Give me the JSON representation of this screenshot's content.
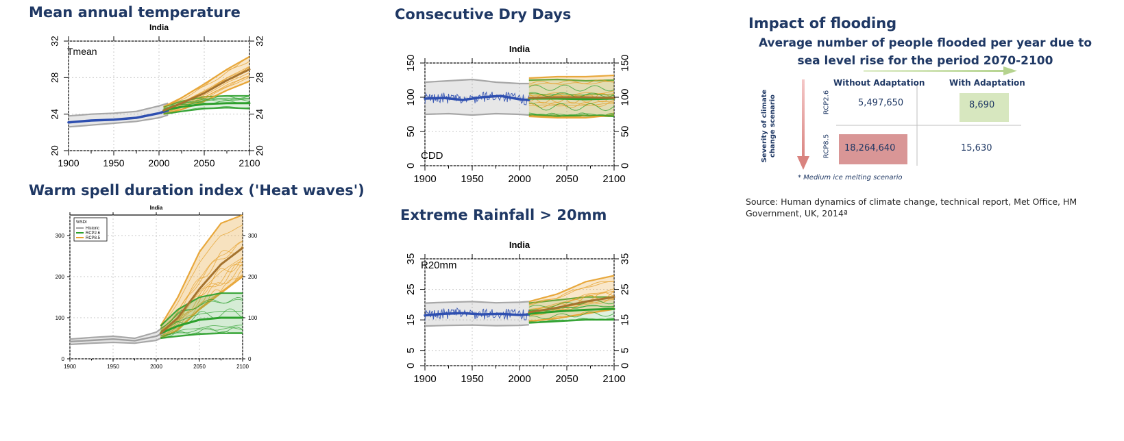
{
  "titles": {
    "tmean": "Mean annual temperature",
    "cdd": "Consecutive Dry Days",
    "wsdi": "Warm spell duration index ('Heat waves')",
    "r20": "Extreme Rainfall > 20mm",
    "flood": "Impact of flooding"
  },
  "colors": {
    "historic": "#9e9e9e",
    "historic_line": "#2e4fb0",
    "rcp26": "#2ca02c",
    "rcp85": "#e6a02a",
    "rcp85_dark": "#a5732e",
    "title": "#1f3864"
  },
  "chart_data": [
    {
      "id": "tmean",
      "type": "line",
      "title": "India",
      "annotation": "Tmean",
      "xlabel": "",
      "ylabel": "",
      "xlim": [
        1900,
        2100
      ],
      "ylim": [
        20,
        32
      ],
      "xticks": [
        1900,
        1950,
        2000,
        2050,
        2100
      ],
      "yticks": [
        20,
        24,
        28,
        32
      ],
      "grid": true,
      "legend": "none",
      "series": [
        {
          "role": "historic-band",
          "x": [
            1900,
            1925,
            1950,
            1975,
            2000,
            2010
          ],
          "upper": [
            23.8,
            24.0,
            24.1,
            24.3,
            24.9,
            25.2
          ],
          "lower": [
            22.6,
            22.8,
            23.0,
            23.2,
            23.6,
            23.9
          ]
        },
        {
          "role": "historic-mean",
          "x": [
            1900,
            1925,
            1950,
            1975,
            2000,
            2010
          ],
          "values": [
            23.1,
            23.3,
            23.4,
            23.6,
            24.1,
            24.4
          ]
        },
        {
          "role": "rcp26-band",
          "x": [
            2005,
            2025,
            2050,
            2075,
            2100
          ],
          "upper": [
            24.8,
            25.4,
            25.9,
            26.0,
            26.0
          ],
          "lower": [
            24.0,
            24.3,
            24.6,
            24.7,
            24.6
          ]
        },
        {
          "role": "rcp26-mean",
          "x": [
            2005,
            2025,
            2050,
            2075,
            2100
          ],
          "values": [
            24.4,
            24.8,
            25.1,
            25.2,
            25.2
          ]
        },
        {
          "role": "rcp85-band",
          "x": [
            2005,
            2025,
            2050,
            2075,
            2100
          ],
          "upper": [
            24.8,
            25.8,
            27.3,
            28.9,
            30.3
          ],
          "lower": [
            24.0,
            24.5,
            25.4,
            26.6,
            27.6
          ]
        },
        {
          "role": "rcp85-mean",
          "x": [
            2005,
            2025,
            2050,
            2075,
            2100
          ],
          "values": [
            24.4,
            25.2,
            26.3,
            27.7,
            28.9
          ]
        }
      ]
    },
    {
      "id": "cdd",
      "type": "line",
      "title": "India",
      "annotation": "CDD",
      "xlabel": "",
      "ylabel": "",
      "xlim": [
        1900,
        2100
      ],
      "ylim": [
        0,
        150
      ],
      "xticks": [
        1900,
        1950,
        2000,
        2050,
        2100
      ],
      "yticks": [
        0,
        50,
        100,
        150
      ],
      "grid": true,
      "legend": "none",
      "series": [
        {
          "role": "historic-band",
          "x": [
            1900,
            1925,
            1950,
            1975,
            2000,
            2010
          ],
          "upper": [
            122,
            124,
            126,
            122,
            120,
            120
          ],
          "lower": [
            75,
            76,
            74,
            76,
            75,
            74
          ]
        },
        {
          "role": "historic-mean",
          "x": [
            1900,
            1920,
            1940,
            1960,
            1980,
            2000,
            2010
          ],
          "values": [
            98,
            99,
            96,
            100,
            102,
            97,
            96
          ]
        },
        {
          "role": "rcp26-band",
          "x": [
            2010,
            2040,
            2070,
            2100
          ],
          "upper": [
            125,
            126,
            124,
            125
          ],
          "lower": [
            74,
            72,
            73,
            72
          ]
        },
        {
          "role": "rcp85-band",
          "x": [
            2010,
            2040,
            2070,
            2100
          ],
          "upper": [
            128,
            130,
            130,
            132
          ],
          "lower": [
            72,
            70,
            70,
            74
          ]
        },
        {
          "role": "rcp85-mean",
          "x": [
            2010,
            2040,
            2070,
            2100
          ],
          "values": [
            99,
            100,
            100,
            99
          ]
        },
        {
          "role": "rcp26-mean",
          "x": [
            2010,
            2040,
            2070,
            2100
          ],
          "values": [
            98,
            98,
            97,
            98
          ]
        }
      ]
    },
    {
      "id": "wsdi",
      "type": "line",
      "title": "India",
      "xlabel": "",
      "ylabel": "",
      "xlim": [
        1900,
        2100
      ],
      "ylim": [
        0,
        350
      ],
      "xticks": [
        1900,
        1950,
        2000,
        2050,
        2100
      ],
      "yticks": [
        0,
        100,
        200,
        300
      ],
      "grid": true,
      "legend": "top-left",
      "legend_title": "WSDI",
      "legend_entries": [
        "Historic",
        "RCP2.6",
        "RCP8.5"
      ],
      "series": [
        {
          "role": "historic-band",
          "x": [
            1900,
            1925,
            1950,
            1975,
            2000,
            2010
          ],
          "upper": [
            48,
            52,
            55,
            50,
            65,
            80
          ],
          "lower": [
            35,
            38,
            40,
            38,
            45,
            55
          ]
        },
        {
          "role": "historic-mean",
          "x": [
            1900,
            1925,
            1950,
            1975,
            2000,
            2010
          ],
          "values": [
            42,
            45,
            48,
            44,
            55,
            65
          ]
        },
        {
          "role": "rcp85-band",
          "x": [
            2005,
            2025,
            2050,
            2075,
            2100
          ],
          "upper": [
            80,
            150,
            260,
            330,
            350
          ],
          "lower": [
            50,
            70,
            120,
            160,
            200
          ]
        },
        {
          "role": "rcp26-band",
          "x": [
            2005,
            2025,
            2050,
            2075,
            2100
          ],
          "upper": [
            80,
            120,
            150,
            160,
            160
          ],
          "lower": [
            50,
            55,
            60,
            62,
            62
          ]
        },
        {
          "role": "rcp85-mean",
          "x": [
            2005,
            2025,
            2050,
            2075,
            2100
          ],
          "values": [
            62,
            100,
            170,
            230,
            270
          ]
        },
        {
          "role": "rcp26-mean",
          "x": [
            2005,
            2025,
            2050,
            2075,
            2100
          ],
          "values": [
            62,
            80,
            95,
            100,
            100
          ]
        }
      ]
    },
    {
      "id": "r20",
      "type": "line",
      "title": "India",
      "annotation": "R20mm",
      "xlabel": "",
      "ylabel": "",
      "xlim": [
        1900,
        2100
      ],
      "ylim": [
        0,
        35
      ],
      "xticks": [
        1900,
        1950,
        2000,
        2050,
        2100
      ],
      "yticks": [
        0,
        5,
        15,
        25,
        35
      ],
      "grid": true,
      "legend": "none",
      "series": [
        {
          "role": "historic-band",
          "x": [
            1900,
            1925,
            1950,
            1975,
            2000,
            2010
          ],
          "upper": [
            20.5,
            20.8,
            21.0,
            20.6,
            20.8,
            21.0
          ],
          "lower": [
            13.0,
            13.2,
            13.3,
            13.1,
            13.2,
            13.4
          ]
        },
        {
          "role": "historic-mean",
          "x": [
            1900,
            1920,
            1940,
            1960,
            1980,
            2000,
            2010
          ],
          "values": [
            16.5,
            17.0,
            17.2,
            16.8,
            17.0,
            16.6,
            16.8
          ]
        },
        {
          "role": "rcp26-band",
          "x": [
            2010,
            2040,
            2070,
            2100
          ],
          "upper": [
            20.5,
            21.5,
            22.5,
            22.5
          ],
          "lower": [
            14.0,
            14.5,
            15.0,
            15.0
          ]
        },
        {
          "role": "rcp85-band",
          "x": [
            2010,
            2040,
            2070,
            2100
          ],
          "upper": [
            21.0,
            23.5,
            27.5,
            29.5
          ],
          "lower": [
            14.5,
            15.5,
            17.0,
            18.5
          ]
        },
        {
          "role": "rcp85-mean",
          "x": [
            2010,
            2040,
            2070,
            2100
          ],
          "values": [
            17.5,
            19.0,
            21.0,
            22.5
          ]
        },
        {
          "role": "rcp26-mean",
          "x": [
            2010,
            2040,
            2070,
            2100
          ],
          "values": [
            17.0,
            17.8,
            18.3,
            18.6
          ]
        }
      ]
    },
    {
      "id": "flooding",
      "type": "table",
      "title": "Average number of people flooded per year due to sea level rise for the period 2070-2100",
      "columns": [
        "Without Adaptation",
        "With Adaptation"
      ],
      "rows": [
        {
          "label": "RCP2.6",
          "values": [
            "5,497,650",
            "8,690"
          ]
        },
        {
          "label": "RCP8.5",
          "values": [
            "18,264,640",
            "15,630"
          ]
        }
      ],
      "row_axis_label": "Severity of climate change scenario",
      "note": "* Medium ice melting scenario"
    }
  ],
  "source": "Source: Human dynamics of climate change, technical report, Met Office, HM Government, UK, 2014ª"
}
